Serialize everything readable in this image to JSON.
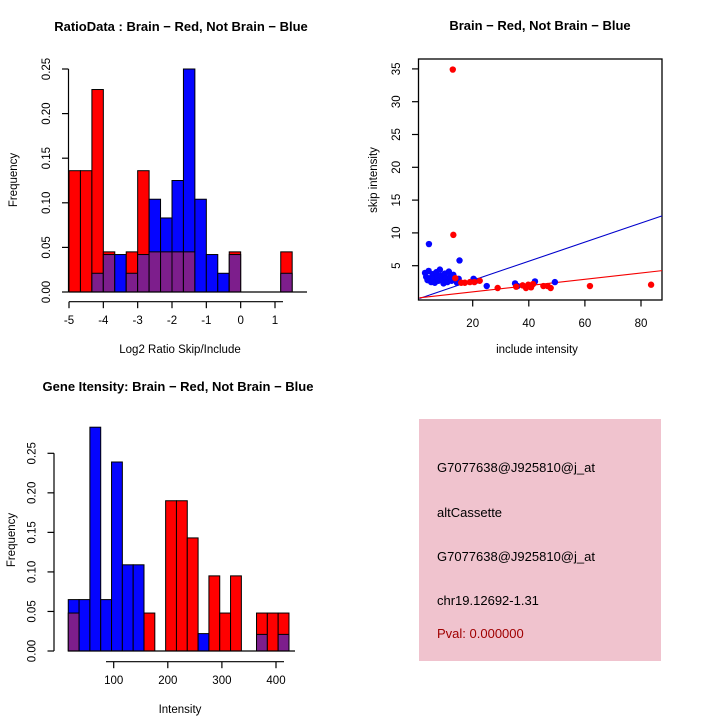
{
  "colors": {
    "red": "#FF0000",
    "blue": "#0505FF",
    "purple": "#7D1E8C",
    "fit_blue": "#0000CC",
    "fit_red": "#F50000",
    "pink_bg": "#F0C3CE",
    "pval_text": "#A00000",
    "axis": "#000000"
  },
  "chart_data": [
    {
      "id": "ratio_hist",
      "type": "bar",
      "subtype": "overlaid-histogram",
      "title": "RatioData : Brain − Red, Not Brain − Blue",
      "xlabel": "Log2 Ratio Skip/Include",
      "ylabel": "Frequency",
      "x_tick_values": [
        -5,
        -4,
        -3,
        -2,
        -1,
        0,
        1
      ],
      "x_tick_labels": [
        "-5",
        "-4",
        "-3",
        "-2",
        "-1",
        "0",
        "1"
      ],
      "y_tick_values": [
        0,
        0.05,
        0.1,
        0.15,
        0.2,
        0.25
      ],
      "y_tick_labels": [
        "0.00",
        "0.05",
        "0.10",
        "0.15",
        "0.20",
        "0.25"
      ],
      "xlim": [
        -5,
        1.55
      ],
      "ylim": [
        0,
        0.26
      ],
      "bin_width": 0.3333,
      "legend_note": "red = Brain, blue = Not Brain, purple = overlap",
      "bars": [
        {
          "x": -5.0,
          "c": "red",
          "h": 0.136
        },
        {
          "x": -4.667,
          "c": "red",
          "h": 0.136
        },
        {
          "x": -4.333,
          "c": "red",
          "h": 0.227,
          "o": 0.021
        },
        {
          "x": -4.0,
          "c": "red",
          "h": 0.045,
          "o": 0.042
        },
        {
          "x": -3.667,
          "c": "blue",
          "h": 0.042
        },
        {
          "x": -3.333,
          "c": "red",
          "h": 0.045,
          "o": 0.021
        },
        {
          "x": -3.0,
          "c": "red",
          "h": 0.136,
          "o": 0.042
        },
        {
          "x": -2.667,
          "c": "blue",
          "h": 0.104,
          "o": 0.045
        },
        {
          "x": -2.333,
          "c": "blue",
          "h": 0.083,
          "o": 0.045
        },
        {
          "x": -2.0,
          "c": "blue",
          "h": 0.125,
          "o": 0.045
        },
        {
          "x": -1.667,
          "c": "blue",
          "h": 0.25,
          "o": 0.045
        },
        {
          "x": -1.333,
          "c": "blue",
          "h": 0.104
        },
        {
          "x": -1.0,
          "c": "blue",
          "h": 0.042
        },
        {
          "x": -0.667,
          "c": "blue",
          "h": 0.021
        },
        {
          "x": -0.333,
          "c": "red",
          "h": 0.045,
          "o": 0.042
        },
        {
          "x": 1.167,
          "c": "red",
          "h": 0.045,
          "o": 0.021
        }
      ]
    },
    {
      "id": "intensity_scatter",
      "type": "scatter",
      "title": "Brain − Red, Not Brain − Blue",
      "xlabel": "include intensity",
      "ylabel": "skip intensity",
      "x_tick_values": [
        20,
        40,
        60,
        80
      ],
      "x_tick_labels": [
        "20",
        "40",
        "60",
        "80"
      ],
      "y_tick_values": [
        5,
        10,
        15,
        20,
        25,
        30,
        35
      ],
      "y_tick_labels": [
        "5",
        "10",
        "15",
        "20",
        "25",
        "30",
        "35"
      ],
      "xlim": [
        1,
        87.5
      ],
      "ylim": [
        0,
        36.5
      ],
      "series": [
        {
          "name": "Not Brain",
          "color": "blue",
          "points": [
            [
              4.4,
              8.3
            ],
            [
              15.3,
              5.8
            ],
            [
              3.0,
              3.9
            ],
            [
              3.4,
              3.3
            ],
            [
              3.9,
              2.8
            ],
            [
              4.3,
              4.2
            ],
            [
              4.8,
              3.1
            ],
            [
              5.2,
              2.5
            ],
            [
              5.7,
              3.7
            ],
            [
              6.1,
              3.0
            ],
            [
              6.5,
              2.4
            ],
            [
              7.0,
              4.0
            ],
            [
              7.4,
              3.3
            ],
            [
              7.8,
              2.7
            ],
            [
              8.3,
              4.4
            ],
            [
              8.7,
              3.5
            ],
            [
              9.1,
              2.8
            ],
            [
              9.6,
              2.3
            ],
            [
              10.1,
              3.8
            ],
            [
              10.5,
              3.1
            ],
            [
              11.0,
              2.5
            ],
            [
              11.5,
              4.1
            ],
            [
              12.0,
              3.3
            ],
            [
              12.5,
              2.7
            ],
            [
              13.1,
              3.6
            ],
            [
              13.7,
              2.9
            ],
            [
              14.4,
              2.4
            ],
            [
              15.0,
              3.0
            ],
            [
              20.3,
              3.0
            ],
            [
              21.2,
              2.7
            ],
            [
              25.0,
              1.9
            ],
            [
              35.1,
              2.3
            ],
            [
              36.0,
              1.9
            ],
            [
              42.2,
              2.6
            ],
            [
              49.3,
              2.5
            ]
          ]
        },
        {
          "name": "Brain",
          "color": "red",
          "points": [
            [
              12.9,
              34.9
            ],
            [
              13.1,
              9.7
            ],
            [
              13.8,
              3.1
            ],
            [
              15.9,
              2.4
            ],
            [
              17.2,
              2.4
            ],
            [
              19.0,
              2.5
            ],
            [
              20.6,
              2.5
            ],
            [
              22.5,
              2.7
            ],
            [
              28.9,
              1.6
            ],
            [
              35.5,
              1.8
            ],
            [
              37.8,
              2.0
            ],
            [
              39.0,
              1.6
            ],
            [
              39.8,
              2.1
            ],
            [
              40.8,
              1.7
            ],
            [
              41.5,
              2.2
            ],
            [
              45.2,
              1.9
            ],
            [
              46.7,
              1.9
            ],
            [
              47.8,
              1.6
            ],
            [
              61.8,
              1.9
            ],
            [
              83.6,
              2.1
            ]
          ]
        }
      ],
      "fit_lines": [
        {
          "color": "fit_blue",
          "x1": 1,
          "y1": 0.0,
          "x2": 87.5,
          "y2": 12.6
        },
        {
          "color": "fit_red",
          "x1": 1,
          "y1": 0.1,
          "x2": 87.5,
          "y2": 4.25
        }
      ]
    },
    {
      "id": "gene_hist",
      "type": "bar",
      "subtype": "overlaid-histogram",
      "title": "Gene Itensity: Brain − Red, Not Brain − Blue",
      "xlabel": "Intensity",
      "ylabel": "Frequency",
      "x_tick_values": [
        100,
        200,
        300,
        400
      ],
      "x_tick_labels": [
        "100",
        "200",
        "300",
        "400"
      ],
      "y_tick_values": [
        0,
        0.05,
        0.1,
        0.15,
        0.2,
        0.25
      ],
      "y_tick_labels": [
        "0.00",
        "0.05",
        "0.10",
        "0.15",
        "0.20",
        "0.25"
      ],
      "xlim": [
        16,
        436
      ],
      "ylim": [
        0,
        0.285
      ],
      "bin_width": 20,
      "legend_note": "red = Brain, blue = Not Brain, purple = overlap",
      "bars": [
        {
          "x": 16,
          "c": "blue",
          "h": 0.065,
          "o": 0.048
        },
        {
          "x": 36,
          "c": "blue",
          "h": 0.065
        },
        {
          "x": 56,
          "c": "blue",
          "h": 0.283
        },
        {
          "x": 76,
          "c": "blue",
          "h": 0.065
        },
        {
          "x": 96,
          "c": "blue",
          "h": 0.239
        },
        {
          "x": 116,
          "c": "blue",
          "h": 0.109
        },
        {
          "x": 136,
          "c": "blue",
          "h": 0.109
        },
        {
          "x": 156,
          "c": "red",
          "h": 0.048
        },
        {
          "x": 196,
          "c": "red",
          "h": 0.19
        },
        {
          "x": 216,
          "c": "red",
          "h": 0.19
        },
        {
          "x": 236,
          "c": "red",
          "h": 0.143
        },
        {
          "x": 256,
          "c": "blue",
          "h": 0.022
        },
        {
          "x": 276,
          "c": "red",
          "h": 0.095
        },
        {
          "x": 296,
          "c": "red",
          "h": 0.048
        },
        {
          "x": 316,
          "c": "red",
          "h": 0.095
        },
        {
          "x": 364,
          "c": "red",
          "h": 0.048,
          "o": 0.021
        },
        {
          "x": 384,
          "c": "red",
          "h": 0.048
        },
        {
          "x": 404,
          "c": "red",
          "h": 0.048,
          "o": 0.021
        }
      ]
    }
  ],
  "info_panel": {
    "probe_id": "G7077638@J925810@j_at",
    "splice_type": "altCassette",
    "probe_id_2": "G7077638@J925810@j_at",
    "locus": "chr19.12692-1.31",
    "pval": "Pval: 0.000000"
  }
}
